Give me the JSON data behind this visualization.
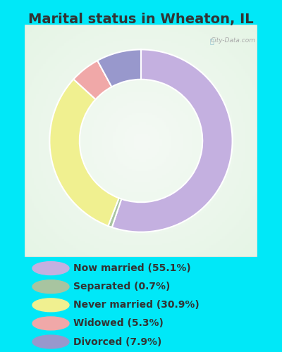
{
  "title": "Marital status in Wheaton, IL",
  "bg_cyan": "#00e8f8",
  "chart_bg_color": "#e8f5ee",
  "slices": [
    {
      "label": "Now married (55.1%)",
      "value": 55.1,
      "color": "#c4b0e0"
    },
    {
      "label": "Separated (0.7%)",
      "value": 0.7,
      "color": "#a8c4a0"
    },
    {
      "label": "Never married (30.9%)",
      "value": 30.9,
      "color": "#f0f090"
    },
    {
      "label": "Widowed (5.3%)",
      "value": 5.3,
      "color": "#f0a8a8"
    },
    {
      "label": "Divorced (7.9%)",
      "value": 7.9,
      "color": "#9898cc"
    }
  ],
  "legend_colors": [
    "#c4b0e0",
    "#a8c4a0",
    "#f0f090",
    "#f0a8a8",
    "#9898cc"
  ],
  "legend_labels": [
    "Now married (55.1%)",
    "Separated (0.7%)",
    "Never married (30.9%)",
    "Widowed (5.3%)",
    "Divorced (7.9%)"
  ],
  "watermark": "City-Data.com",
  "donut_width": 0.36,
  "start_angle": 90,
  "title_fontsize": 14,
  "legend_fontsize": 10
}
